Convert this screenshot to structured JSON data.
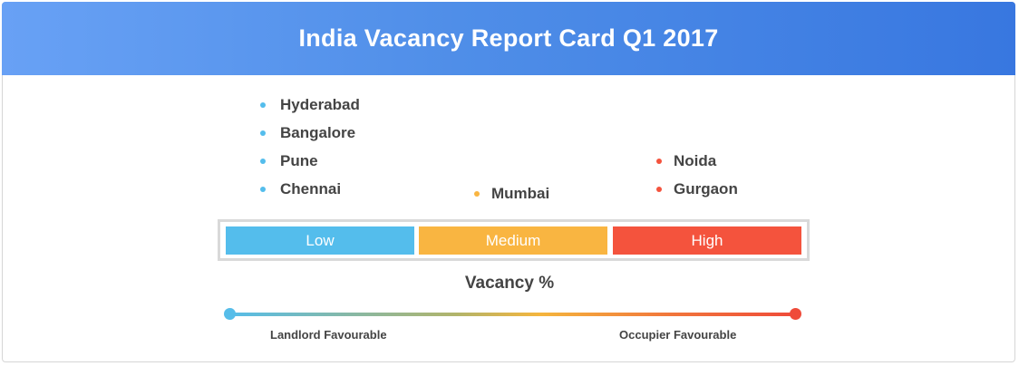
{
  "title": "India Vacancy Report Card Q1 2017",
  "colors": {
    "low": "#54bdec",
    "medium": "#f9b541",
    "high": "#f4533d"
  },
  "low_cities": [
    "Hyderabad",
    "Bangalore",
    "Pune",
    "Chennai"
  ],
  "medium_cities": [
    "Mumbai"
  ],
  "high_cities": [
    "Noida",
    "Gurgaon"
  ],
  "scale": {
    "low": "Low",
    "medium": "Medium",
    "high": "High"
  },
  "axis_label": "Vacancy %",
  "left_label": "Landlord Favourable",
  "right_label": "Occupier Favourable"
}
